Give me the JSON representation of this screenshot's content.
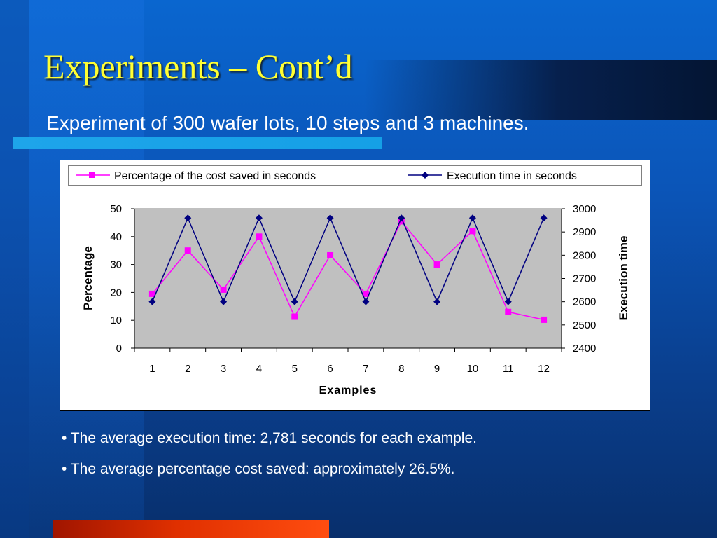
{
  "slide": {
    "title": "Experiments – Cont’d",
    "subtitle": "Experiment of 300 wafer lots, 10 steps and 3 machines.",
    "bullets": [
      "• The average execution time: 2,781 seconds for each example.",
      "• The average percentage cost saved: approximately 26.5%."
    ]
  },
  "colors": {
    "title": "#ffff33",
    "plot_area": "#c0c0c0",
    "series_percentage": "#ff00ff",
    "series_execution": "#000080"
  },
  "chart_data": {
    "type": "line",
    "xlabel": "Examples",
    "ylabel": "Percentage",
    "y2label": "Execution time",
    "categories": [
      "1",
      "2",
      "3",
      "4",
      "5",
      "6",
      "7",
      "8",
      "9",
      "10",
      "11",
      "12"
    ],
    "ylim": [
      0,
      50
    ],
    "yticks": [
      0,
      10,
      20,
      30,
      40,
      50
    ],
    "y2lim": [
      2400,
      3000
    ],
    "y2ticks": [
      2400,
      2500,
      2600,
      2700,
      2800,
      2900,
      3000
    ],
    "grid": false,
    "legend_position": "top",
    "series": [
      {
        "name": "Percentage of the cost saved in seconds",
        "axis": "left",
        "marker": "square",
        "values": [
          19.5,
          35,
          21,
          40,
          11.3,
          33.3,
          19.5,
          45.5,
          30,
          42,
          13,
          10.2
        ]
      },
      {
        "name": "Execution time in seconds",
        "axis": "right",
        "marker": "diamond",
        "values": [
          2600,
          2960,
          2600,
          2960,
          2600,
          2960,
          2600,
          2960,
          2600,
          2960,
          2600,
          2960
        ]
      }
    ]
  }
}
